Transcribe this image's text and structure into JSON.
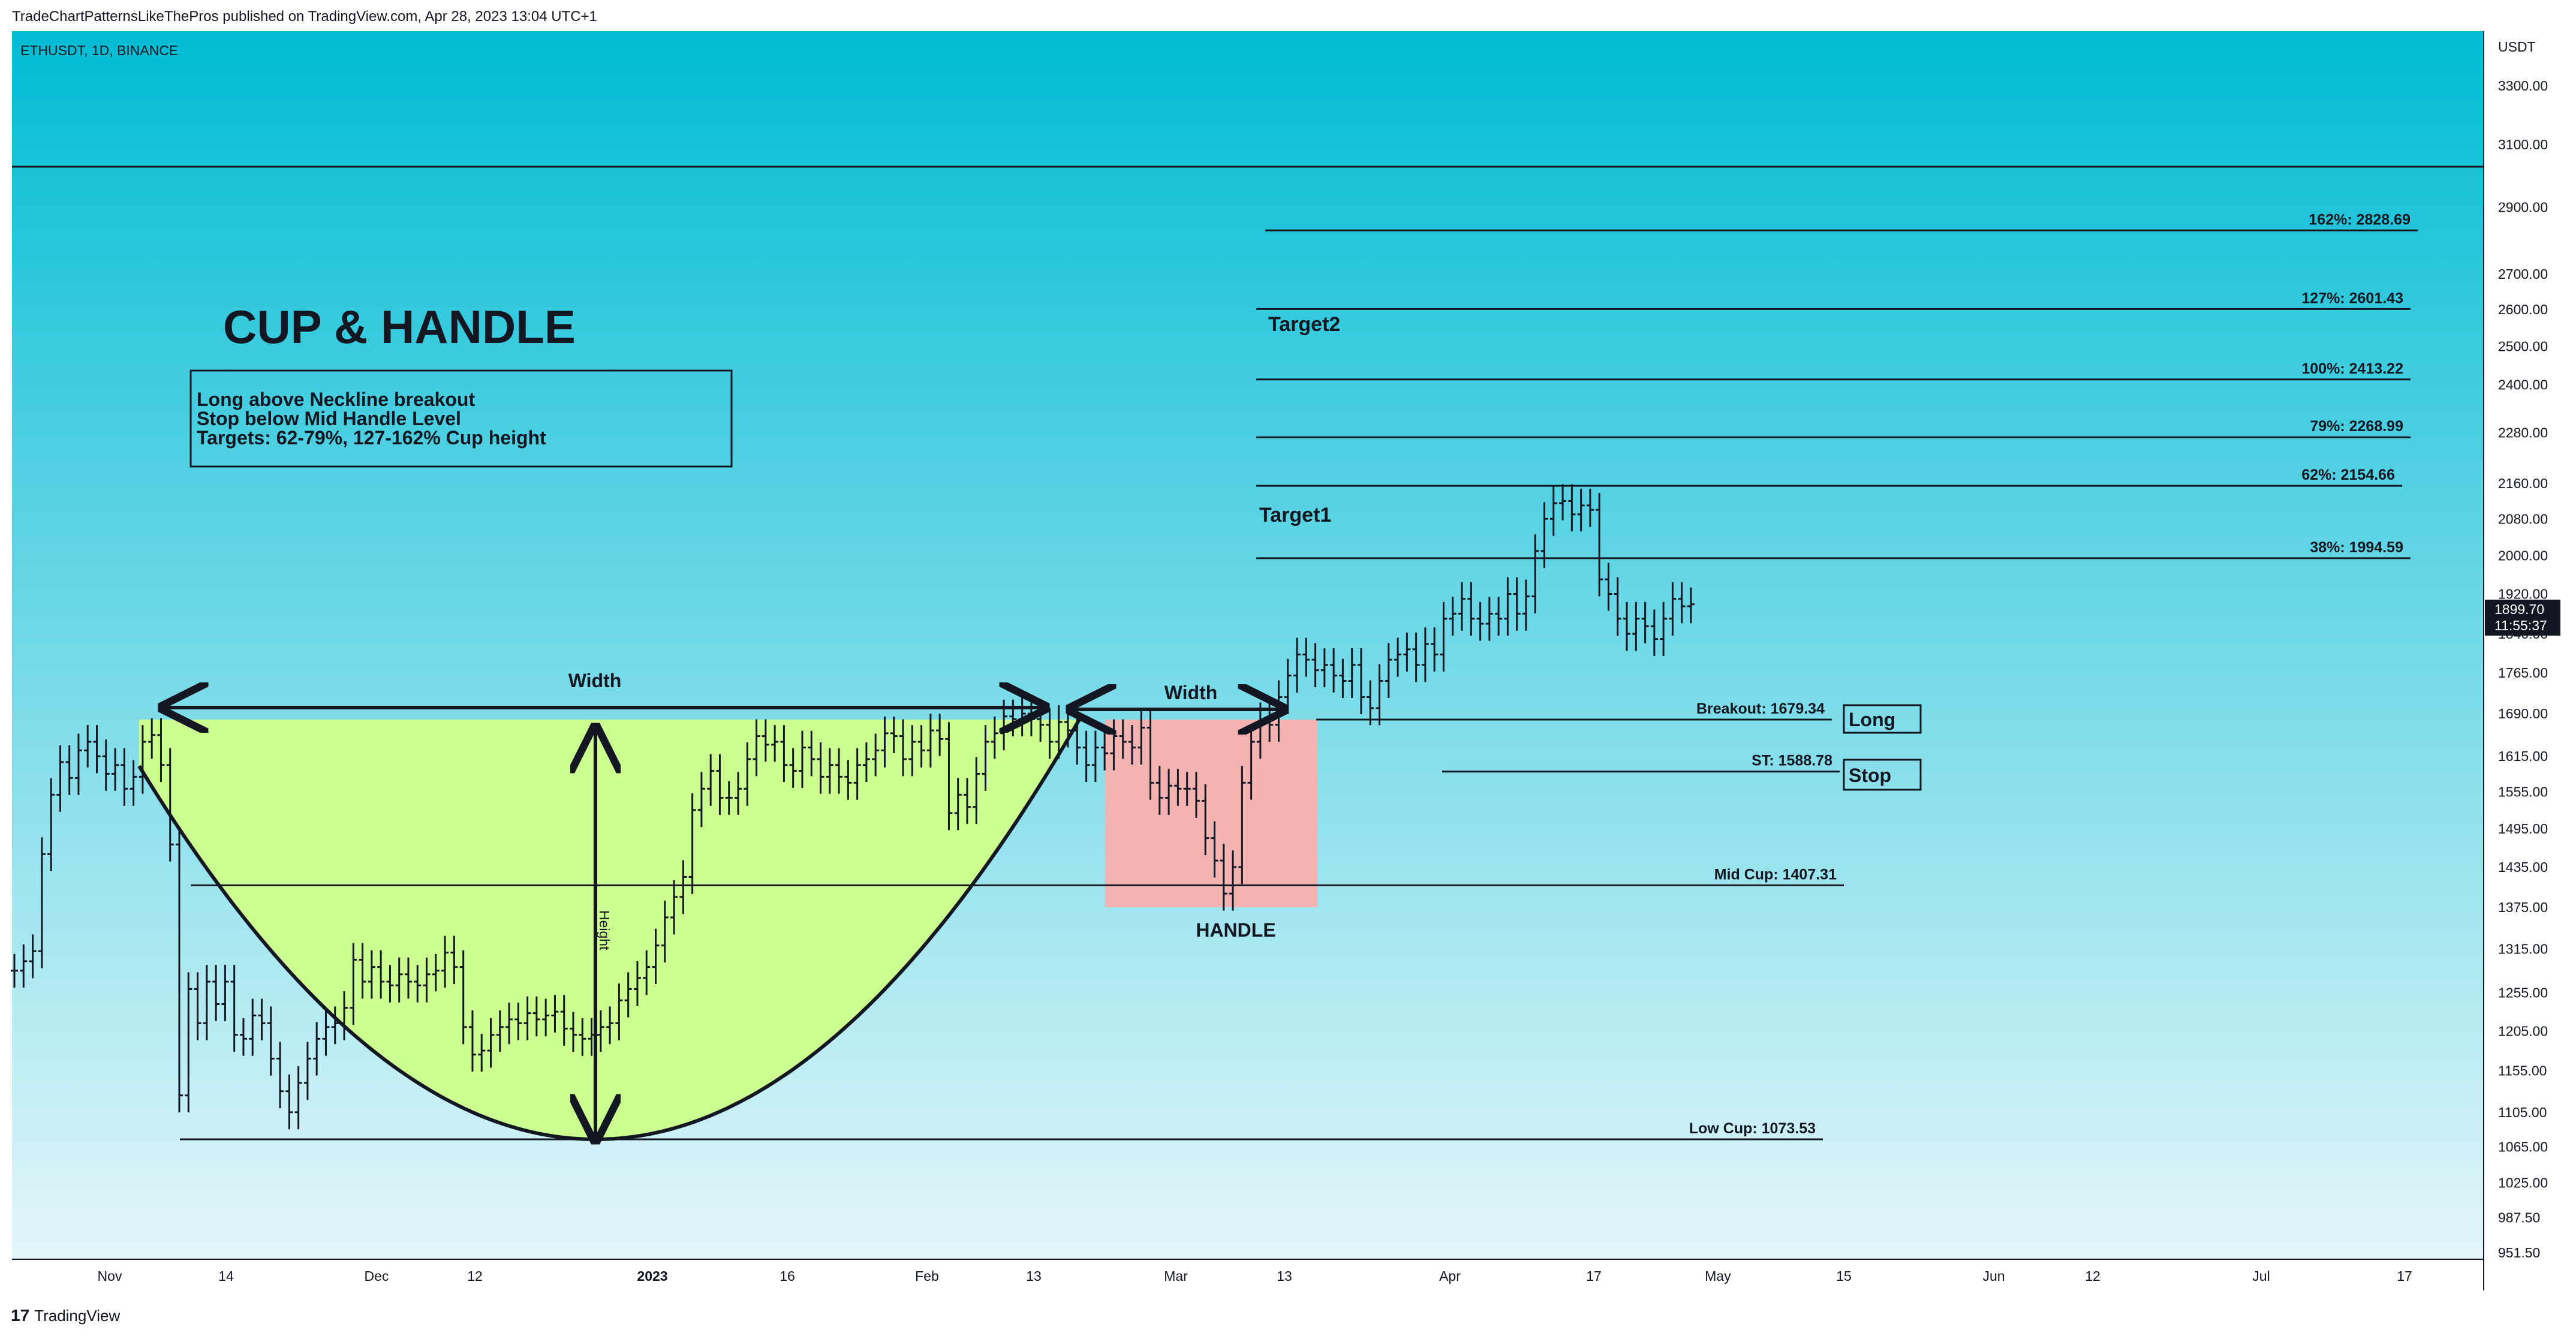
{
  "header": {
    "published": "TradeChartPatternsLikeThePros published on TradingView.com, Apr 28, 2023 13:04 UTC+1"
  },
  "footer": {
    "logo": "17",
    "brand": "TradingView"
  },
  "colors": {
    "bg_top": "#00bcd4",
    "bg_bottom": "#e3f6fa",
    "cup_fill": "#ccff90",
    "handle_fill": "#f4b3b3",
    "line": "#131722"
  },
  "chart_data": {
    "type": "bar",
    "symbol_label": "ETHUSDT, 1D, BINANCE",
    "currency_label": "USDT",
    "title": "CUP & HANDLE",
    "rules": [
      "Long above Neckline breakout",
      "Stop below Mid Handle Level",
      "Targets: 62-79%, 127-162% Cup height"
    ],
    "y_scale": "log",
    "ylim": [
      940,
      3500
    ],
    "y_ticks": [
      "3300.00",
      "3100.00",
      "2900.00",
      "2700.00",
      "2600.00",
      "2500.00",
      "2400.00",
      "2280.00",
      "2160.00",
      "2080.00",
      "2000.00",
      "1920.00",
      "1840.00",
      "1765.00",
      "1690.00",
      "1615.00",
      "1555.00",
      "1495.00",
      "1435.00",
      "1375.00",
      "1315.00",
      "1255.00",
      "1205.00",
      "1155.00",
      "1105.00",
      "1065.00",
      "1025.00",
      "987.50",
      "951.50"
    ],
    "x_labels": [
      "Nov",
      "14",
      "Dec",
      "12",
      "2023",
      "16",
      "Feb",
      "13",
      "Mar",
      "13",
      "Apr",
      "17",
      "May",
      "15",
      "Jun",
      "12",
      "Jul",
      "17"
    ],
    "last_price": "1899.70",
    "countdown": "11:55:37",
    "levels": [
      {
        "label": "162%: 2828.69",
        "value": 2828.69
      },
      {
        "label": "127%: 2601.43",
        "value": 2601.43
      },
      {
        "label": "100%: 2413.22",
        "value": 2413.22
      },
      {
        "label": "79%: 2268.99",
        "value": 2268.99
      },
      {
        "label": "62%: 2154.66",
        "value": 2154.66
      },
      {
        "label": "38%: 1994.59",
        "value": 1994.59
      },
      {
        "label": "Breakout: 1679.34",
        "value": 1679.34
      },
      {
        "label": "ST: 1588.78",
        "value": 1588.78
      },
      {
        "label": "Mid Cup: 1407.31",
        "value": 1407.31
      },
      {
        "label": "Low Cup: 1073.53",
        "value": 1073.53
      }
    ],
    "annotations": {
      "target2": "Target2",
      "target1": "Target1",
      "width1": "Width",
      "width2": "Width",
      "height": "Height",
      "handle": "HANDLE",
      "long": "Long",
      "stop": "Stop"
    },
    "closes": [
      1285,
      1298,
      1312,
      1455,
      1550,
      1605,
      1578,
      1625,
      1640,
      1615,
      1585,
      1600,
      1560,
      1580,
      1640,
      1652,
      1600,
      1470,
      1125,
      1260,
      1215,
      1270,
      1240,
      1270,
      1200,
      1195,
      1225,
      1215,
      1170,
      1130,
      1105,
      1140,
      1170,
      1195,
      1210,
      1215,
      1235,
      1300,
      1270,
      1290,
      1270,
      1265,
      1280,
      1270,
      1265,
      1280,
      1285,
      1310,
      1290,
      1210,
      1175,
      1180,
      1200,
      1210,
      1220,
      1215,
      1228,
      1220,
      1225,
      1230,
      1208,
      1200,
      1195,
      1200,
      1210,
      1215,
      1245,
      1260,
      1275,
      1290,
      1320,
      1360,
      1390,
      1420,
      1525,
      1560,
      1590,
      1545,
      1545,
      1560,
      1610,
      1650,
      1635,
      1640,
      1600,
      1590,
      1630,
      1610,
      1580,
      1600,
      1580,
      1570,
      1600,
      1610,
      1625,
      1655,
      1650,
      1610,
      1640,
      1625,
      1660,
      1645,
      1520,
      1550,
      1530,
      1585,
      1640,
      1655,
      1685,
      1680,
      1690,
      1680,
      1670,
      1640,
      1675,
      1660,
      1630,
      1600,
      1630,
      1620,
      1650,
      1640,
      1630,
      1665,
      1570,
      1545,
      1565,
      1560,
      1560,
      1540,
      1480,
      1445,
      1395,
      1435,
      1570,
      1640,
      1680,
      1670,
      1720,
      1760,
      1800,
      1790,
      1770,
      1780,
      1760,
      1750,
      1780,
      1720,
      1700,
      1750,
      1790,
      1800,
      1810,
      1780,
      1820,
      1800,
      1870,
      1880,
      1910,
      1870,
      1860,
      1880,
      1870,
      1920,
      1880,
      1915,
      2010,
      2080,
      2115,
      2120,
      2090,
      2110,
      2100,
      1950,
      1920,
      1870,
      1840,
      1870,
      1855,
      1830,
      1870,
      1910,
      1895,
      1899
    ]
  }
}
